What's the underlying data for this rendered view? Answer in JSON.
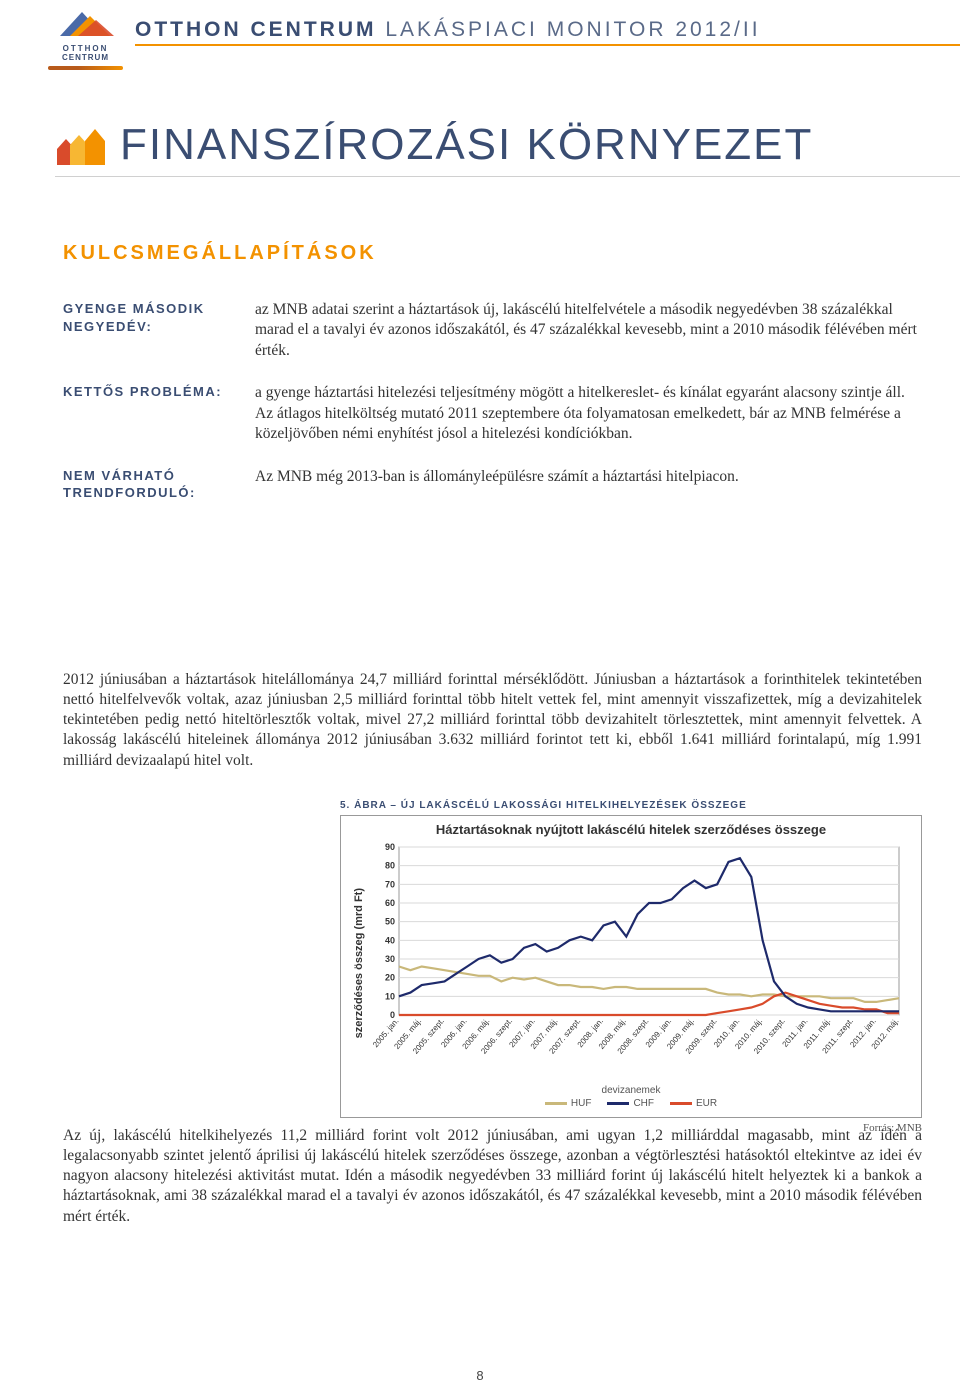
{
  "header": {
    "brand_bold": "OTTHON CENTRUM",
    "brand_light": " LAKÁSPIACI MONITOR 2012/II",
    "logo_line1": "OTTHON",
    "logo_line2": "CENTRUM"
  },
  "section": {
    "title": "FINANSZÍROZÁSI KÖRNYEZET"
  },
  "subsec": "KULCSMEGÁLLAPÍTÁSOK",
  "kv": [
    {
      "label": "GYENGE MÁSODIK NEGYEDÉV:",
      "text": "az MNB adatai szerint a háztartások új, lakáscélú hitelfelvétele a második negyedévben 38 százalékkal marad el a tavalyi év azonos időszakától, és 47 százalékkal kevesebb, mint a 2010 második félévében mért érték."
    },
    {
      "label": "KETTŐS PROBLÉMA:",
      "text": "a gyenge háztartási hitelezési teljesítmény mögött a hitelkereslet- és kínálat egyaránt alacsony szintje áll. Az átlagos hitelköltség mutató 2011 szeptembere óta folyamatosan emelkedett, bár az MNB felmérése a közeljövőben némi enyhítést jósol a hitelezési kondíciókban."
    },
    {
      "label": "NEM VÁRHATÓ TRENDFORDULÓ:",
      "text": "Az MNB még 2013-ban is állományleépülésre számít a háztartási hitelpiacon."
    }
  ],
  "para1": "2012 júniusában a háztartások hitelállománya 24,7 milliárd forinttal mérséklődött. Júniusban a háztartások a forinthitelek tekintetében nettó hitelfelvevők voltak, azaz júniusban 2,5 milliárd forinttal több hitelt vettek fel, mint amennyit visszafizettek, míg a devizahitelek tekintetében pedig nettó hiteltörlesztők voltak, mivel 27,2 milliárd forinttal több devizahitelt törlesztettek, mint amennyit felvettek. A lakosság lakáscélú hiteleinek állománya 2012 júniusában 3.632 milliárd forintot tett ki, ebből 1.641 milliárd forintalapú, míg 1.991 milliárd devizaalapú hitel volt.",
  "chart": {
    "caption": "5. ÁBRA – ÚJ LAKÁSCÉLÚ LAKOSSÁGI HITELKIHELYEZÉSEK ÖSSZEGE",
    "inner_title": "Háztartásoknak nyújtott lakáscélú hitelek szerződéses összege",
    "ylabel": "szerződéses összeg (mrd Ft)",
    "ylim": [
      0,
      90
    ],
    "yticks": [
      0,
      10,
      20,
      30,
      40,
      50,
      60,
      70,
      80,
      90
    ],
    "xlabels": [
      "2005. jan.",
      "2005. máj.",
      "2005. szept.",
      "2006. jan.",
      "2006. máj.",
      "2006. szept.",
      "2007. jan.",
      "2007. máj.",
      "2007. szept.",
      "2008. jan.",
      "2008. máj.",
      "2008. szept.",
      "2009. jan.",
      "2009. máj.",
      "2009. szept.",
      "2010. jan.",
      "2010. máj.",
      "2010. szept.",
      "2011. jan.",
      "2011. máj.",
      "2011. szept.",
      "2012. jan.",
      "2012. máj."
    ],
    "colors": {
      "HUF": "#c9b87a",
      "CHF": "#1e2a6b",
      "EUR": "#d94b2b",
      "grid": "#d9d9d9",
      "axis": "#999999",
      "background": "#ffffff"
    },
    "series": {
      "HUF": [
        26,
        24,
        26,
        25,
        24,
        23,
        22,
        21,
        21,
        18,
        20,
        19,
        20,
        18,
        16,
        16,
        15,
        15,
        14,
        15,
        15,
        14,
        14,
        14,
        14,
        14,
        14,
        14,
        12,
        11,
        11,
        10,
        11,
        11,
        10,
        10,
        10,
        10,
        9,
        9,
        9,
        7,
        7,
        8,
        9
      ],
      "CHF": [
        10,
        12,
        16,
        17,
        18,
        22,
        26,
        30,
        32,
        28,
        30,
        36,
        38,
        34,
        36,
        40,
        42,
        40,
        48,
        50,
        42,
        54,
        60,
        60,
        62,
        68,
        72,
        68,
        70,
        82,
        84,
        74,
        40,
        18,
        10,
        6,
        4,
        3,
        2,
        2,
        2,
        2,
        2,
        2,
        2
      ],
      "EUR": [
        0,
        0,
        0,
        0,
        0,
        0,
        0,
        0,
        0,
        0,
        0,
        0,
        0,
        0,
        0,
        0,
        0,
        0,
        0,
        0,
        0,
        0,
        0,
        0,
        0,
        0,
        0,
        0,
        1,
        2,
        3,
        4,
        6,
        10,
        12,
        10,
        8,
        6,
        5,
        4,
        4,
        3,
        3,
        1,
        1
      ]
    },
    "legend_title": "devizanemek",
    "legend": [
      "HUF",
      "CHF",
      "EUR"
    ],
    "source": "Forrás: MNB",
    "line_width": 2.2,
    "tick_fontsize": 9
  },
  "para2": "Az új, lakáscélú hitelkihelyezés 11,2 milliárd forint volt 2012 júniusában, ami ugyan 1,2 milliárddal magasabb, mint az idén a legalacsonyabb szintet jelentő áprilisi új lakáscélú hitelek szerződéses összege, azonban a végtörlesztési hatásoktól eltekintve az idei év nagyon alacsony hitelezési aktivitást mutat. Idén a második negyedévben 33 milliárd forint új lakáscélú hitelt helyeztek ki a bankok a háztartásoknak, ami 38 százalékkal marad el a tavalyi év azonos időszakától, és 47 százalékkal kevesebb, mint a 2010 második félévében mért érték.",
  "page_number": "8"
}
